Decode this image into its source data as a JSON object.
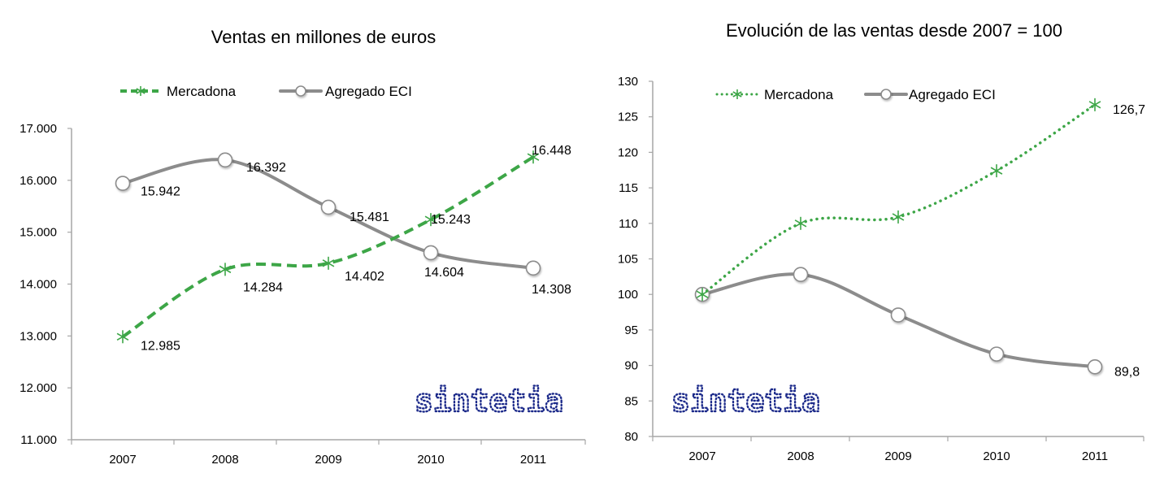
{
  "chart_data": [
    {
      "type": "line",
      "title": "Ventas en millones de euros",
      "categories": [
        "2007",
        "2008",
        "2009",
        "2010",
        "2011"
      ],
      "xlabel": "",
      "ylabel": "",
      "ylim": [
        11000,
        17000
      ],
      "yticks": [
        11000,
        12000,
        13000,
        14000,
        15000,
        16000,
        17000
      ],
      "ytick_labels": [
        "11.000",
        "12.000",
        "13.000",
        "14.000",
        "15.000",
        "16.000",
        "17.000"
      ],
      "grid": false,
      "legend": "top",
      "series": [
        {
          "name": "Mercadona",
          "color": "#3da647",
          "line_style": "dashed",
          "marker": "asterisk",
          "values": [
            12985,
            14284,
            14402,
            15243,
            16448
          ],
          "labels": [
            "12.985",
            "14.284",
            "14.402",
            "15.243",
            "16.448"
          ]
        },
        {
          "name": "Agregado ECI",
          "color": "#8c8c8c",
          "line_style": "solid",
          "marker": "circle",
          "values": [
            15942,
            16392,
            15481,
            14604,
            14308
          ],
          "labels": [
            "15.942",
            "16.392",
            "15.481",
            "14.604",
            "14.308"
          ]
        }
      ],
      "watermark": "sintetia"
    },
    {
      "type": "line",
      "title": "Evolución de las ventas desde 2007 = 100",
      "categories": [
        "2007",
        "2008",
        "2009",
        "2010",
        "2011"
      ],
      "xlabel": "",
      "ylabel": "",
      "ylim": [
        80,
        130
      ],
      "yticks": [
        80,
        85,
        90,
        95,
        100,
        105,
        110,
        115,
        120,
        125,
        130
      ],
      "ytick_labels": [
        "80",
        "85",
        "90",
        "95",
        "100",
        "105",
        "110",
        "115",
        "120",
        "125",
        "130"
      ],
      "grid": false,
      "legend": "top",
      "series": [
        {
          "name": "Mercadona",
          "color": "#3da647",
          "line_style": "dotted",
          "marker": "asterisk",
          "values": [
            100,
            110.0,
            110.9,
            117.4,
            126.7
          ],
          "labels": [
            "",
            "",
            "",
            "",
            "126,7"
          ]
        },
        {
          "name": "Agregado ECI",
          "color": "#8c8c8c",
          "line_style": "solid",
          "marker": "circle",
          "values": [
            100,
            102.8,
            97.1,
            91.6,
            89.8
          ],
          "labels": [
            "",
            "",
            "",
            "",
            "89,8"
          ]
        }
      ],
      "watermark": "sintetia"
    }
  ]
}
